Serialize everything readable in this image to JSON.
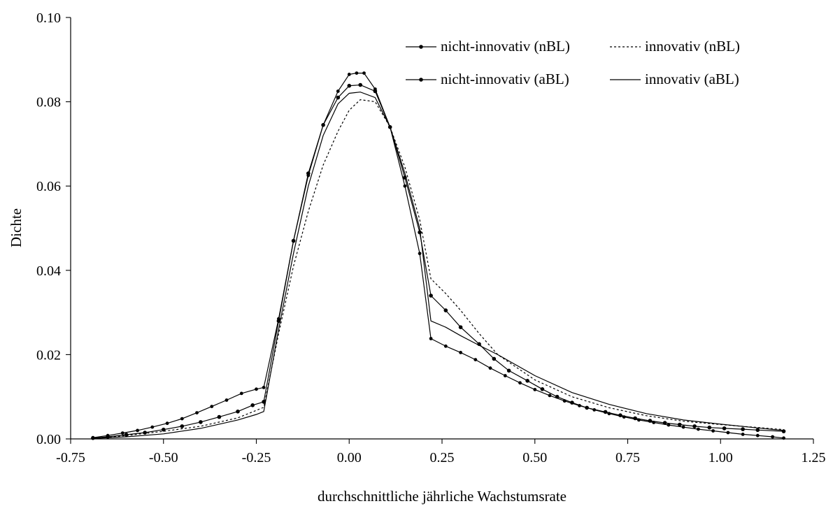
{
  "chart_data": {
    "type": "line",
    "title": "",
    "xlabel": "durchschnittliche jährliche Wachstumsrate",
    "ylabel": "Dichte",
    "xlim": [
      -0.75,
      1.25
    ],
    "ylim": [
      0.0,
      0.1
    ],
    "x_ticks": [
      "-0.75",
      "-0.50",
      "-0.25",
      "0.00",
      "0.25",
      "0.50",
      "0.75",
      "1.00",
      "1.25"
    ],
    "y_ticks": [
      "0.00",
      "0.02",
      "0.04",
      "0.06",
      "0.08",
      "0.10"
    ],
    "grid": false,
    "legend_position": "top-right",
    "series": [
      {
        "name": "nicht-innovativ (nBL)",
        "style": "line-with-markers",
        "x": [
          -0.69,
          -0.65,
          -0.6,
          -0.55,
          -0.5,
          -0.45,
          -0.4,
          -0.35,
          -0.3,
          -0.26,
          -0.23,
          -0.19,
          -0.15,
          -0.11,
          -0.07,
          -0.03,
          0.0,
          0.03,
          0.07,
          0.11,
          0.15,
          0.19,
          0.22,
          0.26,
          0.3,
          0.35,
          0.39,
          0.43,
          0.48,
          0.52,
          0.56,
          0.6,
          0.64,
          0.69,
          0.73,
          0.77,
          0.81,
          0.85,
          0.89,
          0.93,
          0.97,
          1.01,
          1.06,
          1.1,
          1.17
        ],
        "y": [
          0.0002,
          0.0005,
          0.001,
          0.0015,
          0.0022,
          0.003,
          0.004,
          0.0052,
          0.0065,
          0.008,
          0.0088,
          0.028,
          0.047,
          0.063,
          0.0745,
          0.081,
          0.0838,
          0.084,
          0.0825,
          0.074,
          0.062,
          0.049,
          0.034,
          0.0305,
          0.0265,
          0.0225,
          0.019,
          0.0162,
          0.0138,
          0.0118,
          0.01,
          0.0086,
          0.0074,
          0.0064,
          0.0056,
          0.0049,
          0.0043,
          0.0038,
          0.0034,
          0.003,
          0.0027,
          0.0025,
          0.0023,
          0.0021,
          0.0018
        ]
      },
      {
        "name": "innovativ (nBL)",
        "style": "dashed",
        "x": [
          -0.69,
          -0.6,
          -0.5,
          -0.4,
          -0.3,
          -0.23,
          -0.19,
          -0.15,
          -0.11,
          -0.07,
          -0.03,
          0.0,
          0.03,
          0.07,
          0.11,
          0.15,
          0.19,
          0.22,
          0.26,
          0.3,
          0.35,
          0.4,
          0.5,
          0.6,
          0.7,
          0.8,
          0.9,
          1.0,
          1.1,
          1.17
        ],
        "y": [
          0.0001,
          0.0008,
          0.0018,
          0.003,
          0.005,
          0.0075,
          0.025,
          0.041,
          0.054,
          0.065,
          0.073,
          0.078,
          0.0805,
          0.08,
          0.074,
          0.0645,
          0.052,
          0.038,
          0.0345,
          0.0305,
          0.025,
          0.02,
          0.014,
          0.01,
          0.0074,
          0.0055,
          0.0042,
          0.0034,
          0.0027,
          0.0022
        ]
      },
      {
        "name": "nicht-innovativ (aBL)",
        "style": "line-with-small-markers",
        "x": [
          -0.69,
          -0.65,
          -0.61,
          -0.57,
          -0.53,
          -0.49,
          -0.45,
          -0.41,
          -0.37,
          -0.33,
          -0.29,
          -0.25,
          -0.23,
          -0.19,
          -0.15,
          -0.11,
          -0.07,
          -0.03,
          0.0,
          0.02,
          0.04,
          0.07,
          0.11,
          0.15,
          0.19,
          0.22,
          0.26,
          0.3,
          0.34,
          0.38,
          0.42,
          0.46,
          0.5,
          0.54,
          0.58,
          0.62,
          0.66,
          0.7,
          0.74,
          0.78,
          0.82,
          0.86,
          0.9,
          0.94,
          0.98,
          1.02,
          1.06,
          1.1,
          1.14,
          1.17
        ],
        "y": [
          0.0003,
          0.0008,
          0.0014,
          0.002,
          0.0028,
          0.0037,
          0.0048,
          0.0062,
          0.0077,
          0.0092,
          0.0108,
          0.0118,
          0.0122,
          0.0285,
          0.047,
          0.0625,
          0.0745,
          0.0825,
          0.0865,
          0.0868,
          0.0868,
          0.083,
          0.074,
          0.06,
          0.044,
          0.0238,
          0.022,
          0.0205,
          0.0188,
          0.0168,
          0.015,
          0.0133,
          0.0117,
          0.0103,
          0.009,
          0.0079,
          0.0069,
          0.006,
          0.0052,
          0.0045,
          0.0039,
          0.0033,
          0.0028,
          0.0023,
          0.0019,
          0.0015,
          0.0011,
          0.0008,
          0.0005,
          0.0002
        ]
      },
      {
        "name": "innovativ (aBL)",
        "style": "solid",
        "x": [
          -0.69,
          -0.6,
          -0.5,
          -0.4,
          -0.3,
          -0.25,
          -0.23,
          -0.19,
          -0.15,
          -0.11,
          -0.07,
          -0.03,
          0.0,
          0.03,
          0.07,
          0.11,
          0.15,
          0.19,
          0.22,
          0.26,
          0.3,
          0.35,
          0.4,
          0.5,
          0.6,
          0.7,
          0.8,
          0.9,
          1.0,
          1.1,
          1.17
        ],
        "y": [
          0.0001,
          0.0005,
          0.0012,
          0.0025,
          0.0045,
          0.0058,
          0.0065,
          0.026,
          0.044,
          0.06,
          0.072,
          0.0795,
          0.082,
          0.0823,
          0.081,
          0.074,
          0.063,
          0.05,
          0.028,
          0.0265,
          0.0245,
          0.0222,
          0.02,
          0.015,
          0.011,
          0.0082,
          0.006,
          0.0045,
          0.0035,
          0.0026,
          0.002
        ]
      }
    ]
  }
}
